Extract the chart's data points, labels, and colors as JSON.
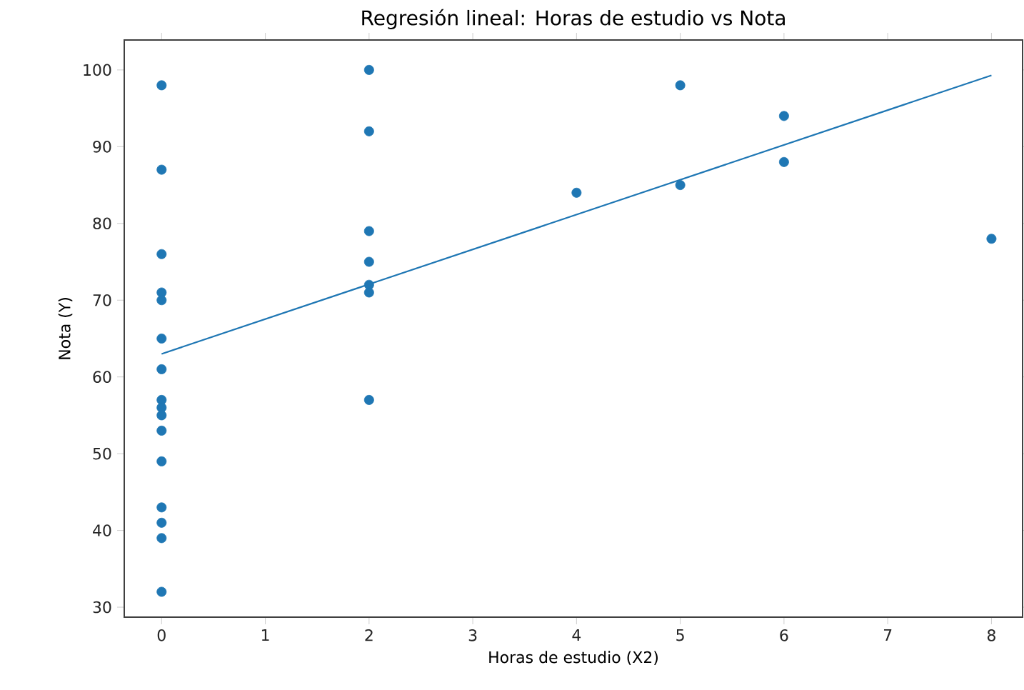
{
  "chart_data": {
    "type": "scatter",
    "title": "Regresión lineal: Horas de estudio vs Nota",
    "xlabel": "Horas de estudio (X2)",
    "ylabel": "Nota (Y)",
    "xlim": [
      -0.36,
      8.3
    ],
    "ylim": [
      28.7,
      103.9
    ],
    "xticks": [
      0,
      1,
      2,
      3,
      4,
      5,
      6,
      7,
      8
    ],
    "yticks": [
      30,
      40,
      50,
      60,
      70,
      80,
      90,
      100
    ],
    "grid": false,
    "series": [
      {
        "color": "#1f77b4",
        "marker": "circle",
        "x": [
          0,
          0,
          0,
          0,
          0,
          0,
          0,
          0,
          0,
          0,
          0,
          0,
          0,
          0,
          0,
          0,
          2,
          2,
          2,
          2,
          2,
          2,
          2,
          4,
          5,
          5,
          6,
          6,
          8
        ],
        "values": [
          98,
          87,
          76,
          71,
          70,
          65,
          61,
          57,
          56,
          55,
          53,
          49,
          43,
          41,
          39,
          32,
          100,
          92,
          79,
          75,
          72,
          71,
          57,
          84,
          98,
          85,
          94,
          88,
          78
        ]
      },
      {
        "type": "line",
        "color": "#1f77b4",
        "marker": "none",
        "line_style": "solid",
        "x": [
          0,
          8
        ],
        "values": [
          63,
          99.3
        ]
      }
    ]
  }
}
